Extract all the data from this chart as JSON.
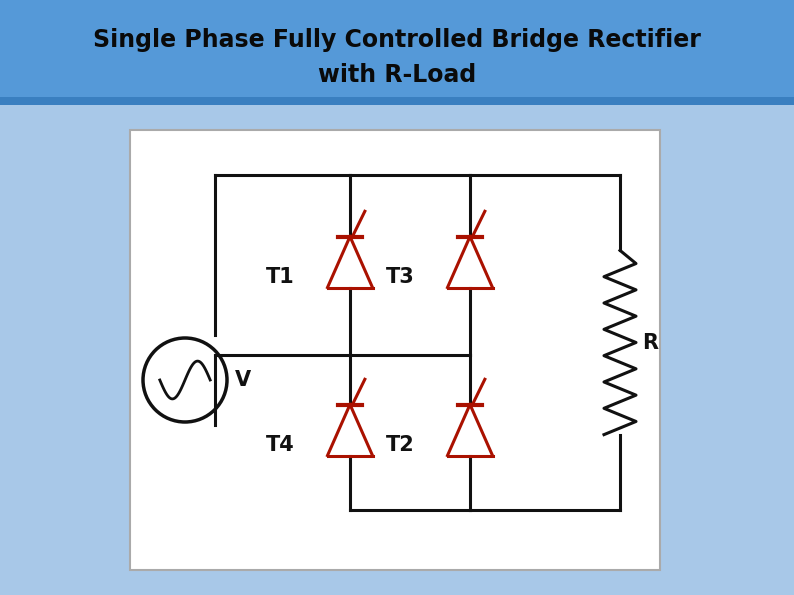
{
  "title_line1": "Single Phase Fully Controlled Bridge Rectifier",
  "title_line2": "with R-Load",
  "title_bg_top": "#5ba3e0",
  "title_bg_bot": "#3a7fc0",
  "title_text_color": "#0a0a0a",
  "outer_bg_color": "#a8c8e8",
  "wire_color": "#111111",
  "thyristor_color": "#aa1100",
  "label_color": "#111111",
  "T1_label": "T1",
  "T2_label": "T2",
  "T3_label": "T3",
  "T4_label": "T4",
  "V_label": "V",
  "R_label": "R",
  "fig_width": 7.94,
  "fig_height": 5.95,
  "dpi": 100
}
